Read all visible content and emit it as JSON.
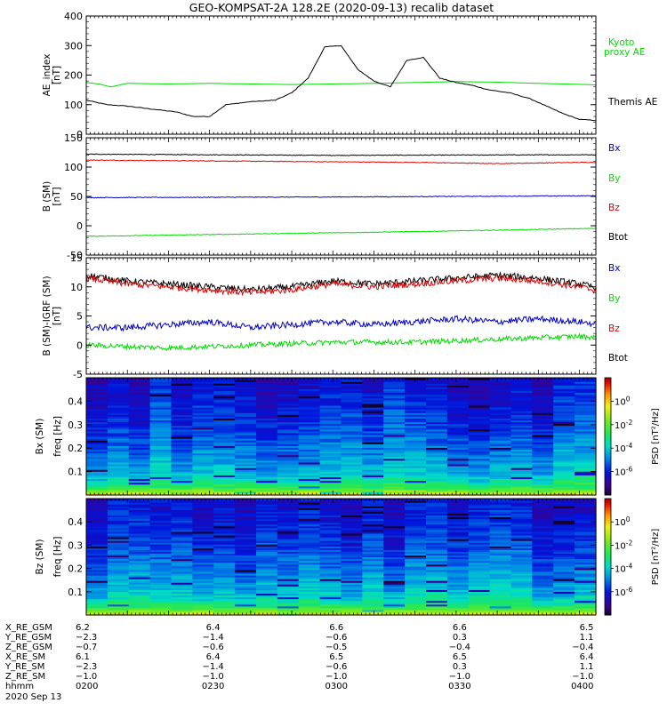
{
  "title": "GEO-KOMPSAT-2A 128.2E (2020-09-13) recalib dataset",
  "colors": {
    "black": "#000000",
    "blue": "#0000cc",
    "green": "#00dd00",
    "red": "#dd0000"
  },
  "chart_data": [
    {
      "id": "ae",
      "type": "line",
      "ylabel": "AE_index",
      "yunit": "[nT]",
      "ylim": [
        0,
        400
      ],
      "yticks": [
        0,
        100,
        200,
        300,
        400
      ],
      "legend": [
        "Kyoto proxy AE",
        "Themis AE"
      ],
      "legend_lines": {
        "kyoto": [
          "Kyoto",
          "proxy AE"
        ],
        "themis": "Themis AE"
      },
      "x_range": [
        "02:00",
        "04:04"
      ],
      "series": [
        {
          "name": "Kyoto proxy AE",
          "color": "green",
          "points": [
            [
              0,
              175
            ],
            [
              3,
              170
            ],
            [
              6,
              160
            ],
            [
              10,
              172
            ],
            [
              20,
              170
            ],
            [
              30,
              172
            ],
            [
              50,
              168
            ],
            [
              70,
              172
            ],
            [
              90,
              178
            ],
            [
              100,
              176
            ],
            [
              110,
              172
            ],
            [
              122,
              168
            ],
            [
              130,
              162
            ],
            [
              140,
              150
            ],
            [
              150,
              148
            ],
            [
              160,
              148
            ],
            [
              170,
              145
            ],
            [
              180,
              150
            ],
            [
              185,
              138
            ],
            [
              190,
              150
            ],
            [
              200,
              152
            ],
            [
              220,
              152
            ],
            [
              240,
              152
            ]
          ]
        },
        {
          "name": "Themis AE",
          "color": "black",
          "points": [
            [
              0,
              115
            ],
            [
              5,
              100
            ],
            [
              10,
              95
            ],
            [
              16,
              85
            ],
            [
              22,
              75
            ],
            [
              26,
              60
            ],
            [
              30,
              60
            ],
            [
              34,
              100
            ],
            [
              40,
              110
            ],
            [
              46,
              115
            ],
            [
              50,
              140
            ],
            [
              54,
              190
            ],
            [
              58,
              295
            ],
            [
              62,
              300
            ],
            [
              66,
              220
            ],
            [
              70,
              180
            ],
            [
              74,
              160
            ],
            [
              78,
              250
            ],
            [
              82,
              260
            ],
            [
              86,
              190
            ],
            [
              90,
              175
            ],
            [
              94,
              165
            ],
            [
              98,
              150
            ],
            [
              103,
              140
            ],
            [
              108,
              120
            ],
            [
              112,
              95
            ],
            [
              116,
              70
            ],
            [
              120,
              50
            ],
            [
              126,
              45
            ],
            [
              132,
              50
            ],
            [
              140,
              55
            ],
            [
              150,
              40
            ],
            [
              160,
              35
            ],
            [
              170,
              30
            ],
            [
              180,
              28
            ],
            [
              190,
              30
            ],
            [
              200,
              35
            ],
            [
              210,
              40
            ],
            [
              220,
              38
            ],
            [
              230,
              42
            ],
            [
              240,
              40
            ]
          ]
        }
      ]
    },
    {
      "id": "bsm",
      "type": "line",
      "ylabel": "B (SM)",
      "yunit": "[nT]",
      "ylim": [
        -50,
        150
      ],
      "yticks": [
        -50,
        0,
        50,
        100,
        150
      ],
      "legend": [
        "Bx",
        "By",
        "Bz",
        "Btot"
      ],
      "series": [
        {
          "name": "Btot",
          "color": "black",
          "points": [
            [
              0,
              122
            ],
            [
              60,
              120
            ],
            [
              120,
              121
            ],
            [
              180,
              121
            ],
            [
              240,
              120
            ]
          ]
        },
        {
          "name": "Bz",
          "color": "red",
          "points": [
            [
              0,
              112
            ],
            [
              40,
              110
            ],
            [
              80,
              108
            ],
            [
              100,
              106
            ],
            [
              120,
              108
            ],
            [
              150,
              109
            ],
            [
              180,
              110
            ],
            [
              240,
              110
            ]
          ]
        },
        {
          "name": "Bx",
          "color": "blue",
          "points": [
            [
              0,
              48
            ],
            [
              60,
              49
            ],
            [
              120,
              51
            ],
            [
              180,
              52
            ],
            [
              240,
              52
            ]
          ]
        },
        {
          "name": "By",
          "color": "green",
          "points": [
            [
              0,
              -18
            ],
            [
              40,
              -14
            ],
            [
              80,
              -10
            ],
            [
              120,
              -5
            ],
            [
              160,
              0
            ],
            [
              200,
              4
            ],
            [
              240,
              8
            ]
          ]
        }
      ]
    },
    {
      "id": "bres",
      "type": "line",
      "ylabel": "B (SM)-IGRF (SM)",
      "yunit": "[nT]",
      "ylim": [
        -5,
        15
      ],
      "yticks": [
        -5,
        0,
        5,
        10,
        15
      ],
      "legend": [
        "Bx",
        "By",
        "Bz",
        "Btot"
      ],
      "series": [
        {
          "name": "Btot",
          "color": "black",
          "points": [
            [
              0,
              12
            ],
            [
              10,
              11
            ],
            [
              20,
              10.5
            ],
            [
              30,
              10
            ],
            [
              40,
              9.5
            ],
            [
              50,
              10
            ],
            [
              60,
              11
            ],
            [
              70,
              10.5
            ],
            [
              80,
              11
            ],
            [
              90,
              11.5
            ],
            [
              100,
              12
            ],
            [
              110,
              11.5
            ],
            [
              120,
              10.5
            ],
            [
              130,
              9
            ],
            [
              140,
              8
            ],
            [
              150,
              6.5
            ],
            [
              160,
              8
            ],
            [
              170,
              9.5
            ],
            [
              180,
              11
            ],
            [
              190,
              12
            ],
            [
              200,
              11.5
            ],
            [
              210,
              11.5
            ],
            [
              220,
              9.5
            ],
            [
              230,
              8
            ],
            [
              240,
              9
            ]
          ]
        },
        {
          "name": "Bz",
          "color": "red",
          "points": [
            [
              0,
              11.5
            ],
            [
              10,
              10.5
            ],
            [
              20,
              10
            ],
            [
              30,
              9.5
            ],
            [
              40,
              9
            ],
            [
              50,
              9.5
            ],
            [
              60,
              10.5
            ],
            [
              70,
              10
            ],
            [
              80,
              10.5
            ],
            [
              90,
              11
            ],
            [
              100,
              11.5
            ],
            [
              110,
              11
            ],
            [
              120,
              10
            ],
            [
              130,
              8.5
            ],
            [
              140,
              7.5
            ],
            [
              150,
              6
            ],
            [
              160,
              7.5
            ],
            [
              170,
              9
            ],
            [
              180,
              10.5
            ],
            [
              190,
              11.5
            ],
            [
              200,
              11
            ],
            [
              210,
              11
            ],
            [
              220,
              9
            ],
            [
              230,
              7.5
            ],
            [
              240,
              8.5
            ]
          ]
        },
        {
          "name": "Bx",
          "color": "blue",
          "points": [
            [
              0,
              3
            ],
            [
              10,
              3
            ],
            [
              20,
              3.5
            ],
            [
              30,
              4
            ],
            [
              40,
              3
            ],
            [
              50,
              3.5
            ],
            [
              60,
              4
            ],
            [
              70,
              3.5
            ],
            [
              80,
              4
            ],
            [
              90,
              4.5
            ],
            [
              100,
              4
            ],
            [
              110,
              4.5
            ],
            [
              120,
              4
            ],
            [
              130,
              3
            ],
            [
              140,
              2
            ],
            [
              150,
              4
            ],
            [
              160,
              3.5
            ],
            [
              170,
              4
            ],
            [
              180,
              4.5
            ],
            [
              190,
              3.5
            ],
            [
              200,
              2
            ],
            [
              210,
              2.5
            ],
            [
              220,
              3
            ],
            [
              230,
              3
            ],
            [
              240,
              3
            ]
          ]
        },
        {
          "name": "By",
          "color": "green",
          "points": [
            [
              0,
              0
            ],
            [
              20,
              -0.5
            ],
            [
              40,
              0
            ],
            [
              60,
              0.5
            ],
            [
              80,
              0.5
            ],
            [
              100,
              1
            ],
            [
              120,
              1.5
            ],
            [
              130,
              1
            ],
            [
              140,
              0
            ],
            [
              150,
              -1
            ],
            [
              160,
              0
            ],
            [
              180,
              1
            ],
            [
              200,
              1.5
            ],
            [
              220,
              1
            ],
            [
              240,
              1
            ]
          ]
        }
      ]
    },
    {
      "id": "bxspec",
      "type": "heatmap",
      "ylabel": "Bx (SM)",
      "ylabel2": "freq [Hz]",
      "ylim": [
        0,
        0.5
      ],
      "yticks": [
        0.1,
        0.2,
        0.3,
        0.4
      ],
      "ytick_labels": [
        "0.1",
        "0.2",
        "0.3",
        "0.4"
      ],
      "colorbar": {
        "label": "PSD [nT²/Hz]",
        "range": [
          -8,
          2
        ],
        "ticks": [
          "10^0",
          "10^-2",
          "10^-4",
          "10^-6"
        ],
        "tick_values": [
          0,
          -2,
          -4,
          -6
        ]
      },
      "profile": [
        [
          0,
          0.2
        ],
        [
          0.01,
          -1
        ],
        [
          0.03,
          -2.5
        ],
        [
          0.06,
          -3.5
        ],
        [
          0.1,
          -4.2
        ],
        [
          0.2,
          -5
        ],
        [
          0.3,
          -5.6
        ],
        [
          0.4,
          -6
        ],
        [
          0.5,
          -6.3
        ]
      ]
    },
    {
      "id": "bzspec",
      "type": "heatmap",
      "ylabel": "Bz (SM)",
      "ylabel2": "freq [Hz]",
      "ylim": [
        0,
        0.5
      ],
      "yticks": [
        0.1,
        0.2,
        0.3,
        0.4
      ],
      "ytick_labels": [
        "0.1",
        "0.2",
        "0.3",
        "0.4"
      ],
      "colorbar": {
        "label": "PSD [nT²/Hz]",
        "range": [
          -8,
          2
        ],
        "ticks": [
          "10^0",
          "10^-2",
          "10^-4",
          "10^-6"
        ],
        "tick_values": [
          0,
          -2,
          -4,
          -6
        ]
      },
      "profile": [
        [
          0,
          0.2
        ],
        [
          0.01,
          -1
        ],
        [
          0.03,
          -2.5
        ],
        [
          0.06,
          -3.5
        ],
        [
          0.1,
          -4.2
        ],
        [
          0.2,
          -5
        ],
        [
          0.3,
          -5.6
        ],
        [
          0.4,
          -6
        ],
        [
          0.5,
          -6.3
        ]
      ]
    }
  ],
  "ephemeris": {
    "labels": [
      "X_RE_GSM",
      "Y_RE_GSM",
      "Z_RE_GSM",
      "X_RE_SM",
      "Y_RE_SM",
      "Z_RE_SM",
      "hhmm",
      "2020 Sep 13"
    ],
    "columns": [
      {
        "t": 0,
        "values": [
          "6.2",
          "−2.3",
          "−0.7",
          "6.1",
          "−2.3",
          "−1.0",
          "0200"
        ]
      },
      {
        "t": 30,
        "values": [
          "6.4",
          "−1.4",
          "−0.6",
          "6.4",
          "−1.4",
          "−1.0",
          "0230"
        ]
      },
      {
        "t": 60,
        "values": [
          "6.6",
          "−0.6",
          "−0.5",
          "6.5",
          "−0.6",
          "−1.0",
          "0300"
        ]
      },
      {
        "t": 90,
        "values": [
          "6.6",
          "0.3",
          "−0.4",
          "6.5",
          "0.3",
          "−1.0",
          "0330"
        ]
      },
      {
        "t": 120,
        "values": [
          "6.5",
          "1.1",
          "−0.4",
          "6.4",
          "1.1",
          "−1.0",
          "0400"
        ]
      }
    ]
  }
}
